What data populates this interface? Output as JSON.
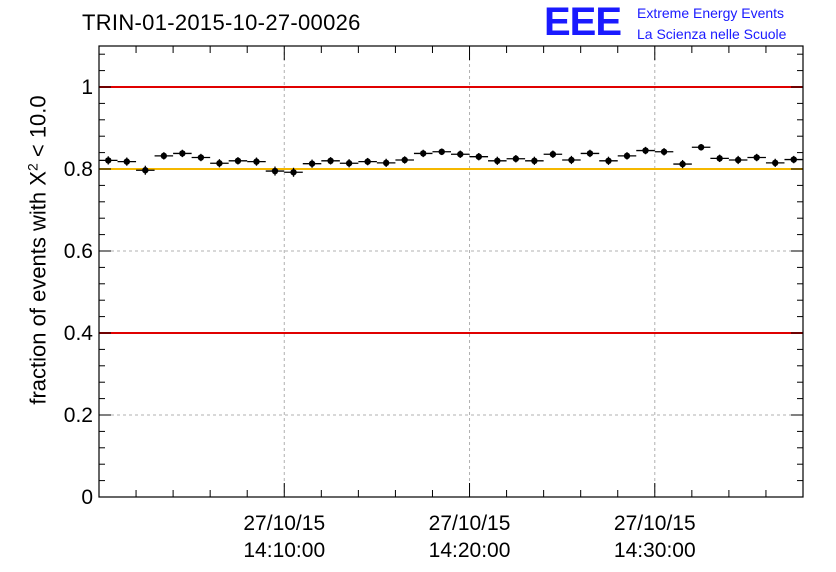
{
  "chart_data": {
    "type": "scatter",
    "title": "TRIN-01-2015-10-27-00026",
    "ylabel_parts": {
      "prefix": "fraction of events with ",
      "symbol": "X",
      "sup": "2",
      "suffix": " < 10.0"
    },
    "xlabel": "",
    "ylim": [
      0,
      1.1
    ],
    "y_ticks": [
      0,
      0.2,
      0.4,
      0.6,
      0.8,
      1
    ],
    "y_tick_labels": [
      "0",
      "0.2",
      "0.4",
      "0.6",
      "0.8",
      "1"
    ],
    "x_range_minutes": [
      0,
      38
    ],
    "x_major_ticks": [
      {
        "minute": 10,
        "date": "27/10/15",
        "time": "14:10:00"
      },
      {
        "minute": 20,
        "date": "27/10/15",
        "time": "14:20:00"
      },
      {
        "minute": 30,
        "date": "27/10/15",
        "time": "14:30:00"
      }
    ],
    "grid": true,
    "reference_lines": [
      {
        "y": 1.0,
        "color": "#e00000"
      },
      {
        "y": 0.8,
        "color": "#f5b800"
      },
      {
        "y": 0.4,
        "color": "#e00000"
      }
    ],
    "series": [
      {
        "name": "data",
        "x": [
          0.5,
          1.5,
          2.5,
          3.5,
          4.5,
          5.5,
          6.5,
          7.5,
          8.5,
          9.5,
          10.5,
          11.5,
          12.5,
          13.5,
          14.5,
          15.5,
          16.5,
          17.5,
          18.5,
          19.5,
          20.5,
          21.5,
          22.5,
          23.5,
          24.5,
          25.5,
          26.5,
          27.5,
          28.5,
          29.5,
          30.5,
          31.5,
          32.5,
          33.5,
          34.5,
          35.5,
          36.5,
          37.5
        ],
        "y": [
          0.821,
          0.818,
          0.797,
          0.832,
          0.838,
          0.828,
          0.814,
          0.82,
          0.818,
          0.795,
          0.792,
          0.813,
          0.82,
          0.814,
          0.818,
          0.815,
          0.822,
          0.838,
          0.842,
          0.836,
          0.83,
          0.82,
          0.825,
          0.82,
          0.836,
          0.822,
          0.838,
          0.82,
          0.832,
          0.845,
          0.842,
          0.812,
          0.853,
          0.826,
          0.822,
          0.828,
          0.815,
          0.823
        ],
        "yerr": [
          0.01,
          0.01,
          0.011,
          0.009,
          0.009,
          0.009,
          0.01,
          0.009,
          0.01,
          0.011,
          0.011,
          0.01,
          0.009,
          0.01,
          0.009,
          0.01,
          0.009,
          0.009,
          0.008,
          0.009,
          0.009,
          0.01,
          0.009,
          0.01,
          0.009,
          0.01,
          0.009,
          0.01,
          0.009,
          0.009,
          0.009,
          0.01,
          0.008,
          0.009,
          0.01,
          0.009,
          0.01,
          0.009
        ],
        "xerr": 0.5,
        "color": "#000000"
      }
    ]
  },
  "logo": {
    "mark": "EEE",
    "line1": "Extreme Energy Events",
    "line2": "La Scienza nelle Scuole",
    "color": "#1a1aff"
  }
}
